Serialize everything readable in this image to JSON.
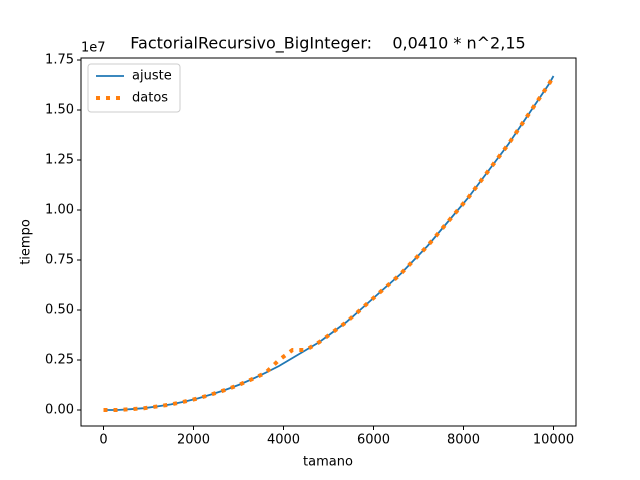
{
  "chart_data": {
    "type": "line",
    "title": "FactorialRecursivo_BigInteger:    0,0410 * n^2,15",
    "x_label": "tamano",
    "y_label": "tiempo",
    "y_offset_label": "1e7",
    "x": [
      0,
      300,
      600,
      900,
      1200,
      1500,
      1800,
      2100,
      2400,
      2700,
      3000,
      3300,
      3600,
      3900,
      4200,
      4500,
      4800,
      5100,
      5400,
      5700,
      6000,
      6300,
      6600,
      6900,
      7200,
      7500,
      7800,
      8100,
      8400,
      8700,
      9000,
      9300,
      9600,
      9900,
      10000
    ],
    "series": [
      {
        "name": "ajuste",
        "color": "#1f77b4",
        "style": "solid",
        "values": [
          0,
          0,
          0.004,
          0.009,
          0.018,
          0.028,
          0.042,
          0.058,
          0.078,
          0.1,
          0.125,
          0.154,
          0.186,
          0.22,
          0.26,
          0.3,
          0.34,
          0.39,
          0.44,
          0.5,
          0.56,
          0.62,
          0.68,
          0.75,
          0.82,
          0.9,
          0.98,
          1.06,
          1.15,
          1.24,
          1.33,
          1.43,
          1.53,
          1.63,
          1.67
        ]
      },
      {
        "name": "datos",
        "color": "#ff7f0e",
        "style": "dotted",
        "values": [
          0,
          0,
          0.004,
          0.009,
          0.018,
          0.028,
          0.042,
          0.058,
          0.078,
          0.1,
          0.125,
          0.154,
          0.186,
          0.25,
          0.3,
          0.3,
          0.34,
          0.39,
          0.44,
          0.5,
          0.56,
          0.62,
          0.68,
          0.75,
          0.82,
          0.9,
          0.98,
          1.06,
          1.15,
          1.24,
          1.33,
          1.43,
          1.53,
          1.63,
          1.67
        ]
      }
    ],
    "xlim": [
      -500,
      10500
    ],
    "ylim": [
      -0.08,
      1.76
    ],
    "xticks": [
      0,
      2000,
      4000,
      6000,
      8000,
      10000
    ],
    "yticks": [
      {
        "value": 0,
        "label": "0.00"
      },
      0.25,
      {
        "value": 0.5,
        "label": "0.50"
      },
      0.75,
      {
        "value": 1,
        "label": "1.00"
      },
      1.25,
      {
        "value": 1.5,
        "label": "1.50"
      },
      1.75
    ],
    "legend": "upper left",
    "grid": false
  }
}
